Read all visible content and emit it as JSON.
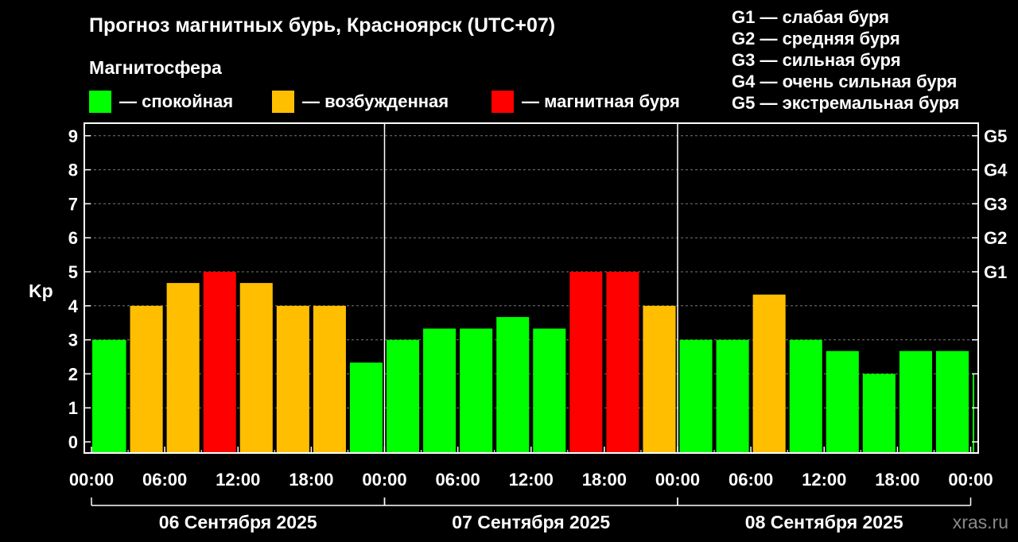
{
  "chart_data": {
    "type": "bar",
    "title": "Прогноз магнитных бурь, Красноярск (UTC+07)",
    "subtitle": "Магнитосфера",
    "ylabel": "Kp",
    "ylim": [
      0,
      9
    ],
    "yticks": [
      "0",
      "1",
      "2",
      "3",
      "4",
      "5",
      "6",
      "7",
      "8",
      "9"
    ],
    "right_ticks": [
      {
        "kp": 5,
        "label": "G1"
      },
      {
        "kp": 6,
        "label": "G2"
      },
      {
        "kp": 7,
        "label": "G3"
      },
      {
        "kp": 8,
        "label": "G4"
      },
      {
        "kp": 9,
        "label": "G5"
      }
    ],
    "grid": true,
    "legend_position": "top",
    "legend": [
      {
        "label": "— спокойная",
        "color": "#00ff00"
      },
      {
        "label": "— возбужденная",
        "color": "#ffbf00"
      },
      {
        "label": "— магнитная буря",
        "color": "#ff0000"
      }
    ],
    "storm_legend": [
      "G1 — слабая буря",
      "G2 — средняя буря",
      "G3 — сильная буря",
      "G4 — очень сильная буря",
      "G5 — экстремальная буря"
    ],
    "xtick_labels": [
      "00:00",
      "06:00",
      "12:00",
      "18:00",
      "00:00",
      "06:00",
      "12:00",
      "18:00",
      "00:00",
      "06:00",
      "12:00",
      "18:00",
      "00:00"
    ],
    "days": [
      "06 Сентября 2025",
      "07 Сентября 2025",
      "08 Сентября 2025"
    ],
    "interval_hours": 3,
    "values": [
      3.0,
      4.0,
      4.67,
      5.0,
      4.67,
      4.0,
      4.0,
      2.33,
      3.0,
      3.33,
      3.33,
      3.67,
      3.33,
      5.0,
      5.0,
      4.0,
      3.0,
      3.0,
      4.33,
      3.0,
      2.67,
      2.0,
      2.67,
      2.67,
      2.0
    ],
    "colors": {
      "calm": "#00ff00",
      "excited": "#ffbf00",
      "storm": "#ff0000"
    }
  },
  "watermark": "xras.ru"
}
